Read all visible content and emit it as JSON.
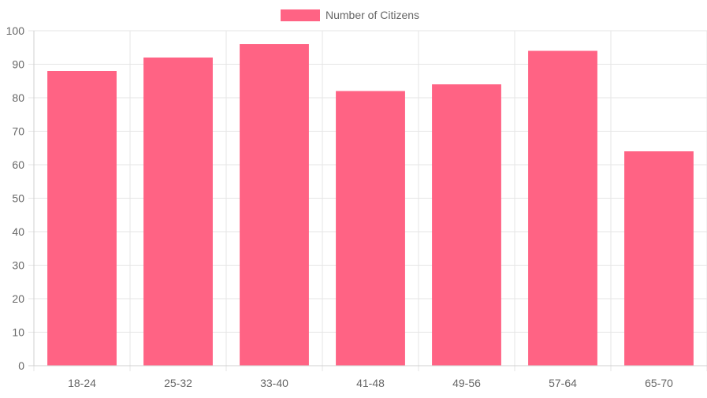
{
  "chart_data": {
    "type": "bar",
    "categories": [
      "18-24",
      "25-32",
      "33-40",
      "41-48",
      "49-56",
      "57-64",
      "65-70"
    ],
    "series": [
      {
        "name": "Number of Citizens",
        "values": [
          88,
          92,
          96,
          82,
          84,
          94,
          64
        ],
        "color": "#ff6384"
      }
    ],
    "ylim": [
      0,
      100
    ],
    "yticks": [
      0,
      10,
      20,
      30,
      40,
      50,
      60,
      70,
      80,
      90,
      100
    ],
    "grid": true,
    "legend_position": "top-center"
  }
}
